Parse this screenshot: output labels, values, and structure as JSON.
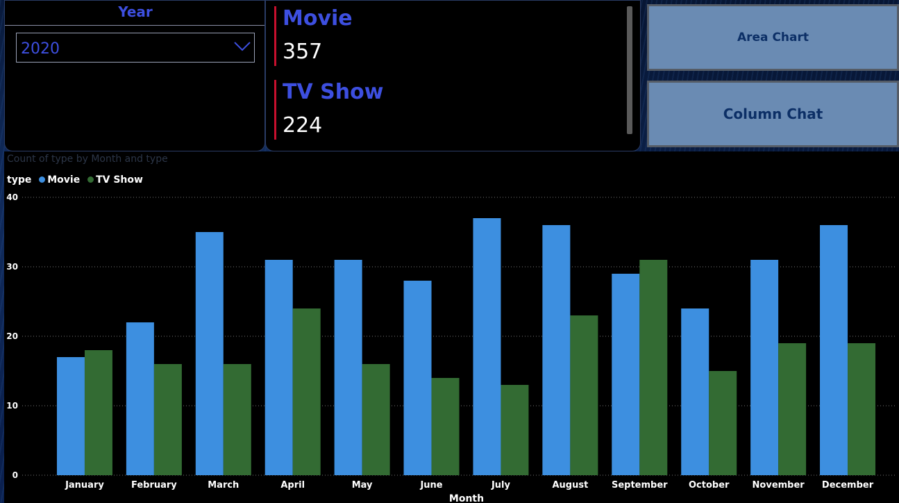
{
  "slicer": {
    "title": "Year",
    "selected": "2020"
  },
  "cards": [
    {
      "label": "Movie",
      "value": "357"
    },
    {
      "label": "TV Show",
      "value": "224"
    }
  ],
  "buttons": {
    "area_chart": "Area Chart",
    "column_chart": "Column Chat"
  },
  "colors": {
    "movie": "#3d8fe0",
    "tv_show": "#336b33",
    "accent": "#3d4fe0"
  },
  "chart_data": {
    "type": "bar",
    "title": "Count of type by Month and type",
    "legend_title": "type",
    "legend_placement": "top-left",
    "xlabel": "Month",
    "ylabel": "",
    "ylim": [
      0,
      40
    ],
    "yticks": [
      0,
      10,
      20,
      30,
      40
    ],
    "grid": true,
    "categories": [
      "January",
      "February",
      "March",
      "April",
      "May",
      "June",
      "July",
      "August",
      "September",
      "October",
      "November",
      "December"
    ],
    "series": [
      {
        "name": "Movie",
        "values": [
          17,
          22,
          35,
          31,
          31,
          28,
          37,
          36,
          29,
          24,
          31,
          36
        ]
      },
      {
        "name": "TV Show",
        "values": [
          18,
          16,
          16,
          24,
          16,
          14,
          13,
          23,
          31,
          15,
          19,
          19
        ]
      }
    ]
  }
}
